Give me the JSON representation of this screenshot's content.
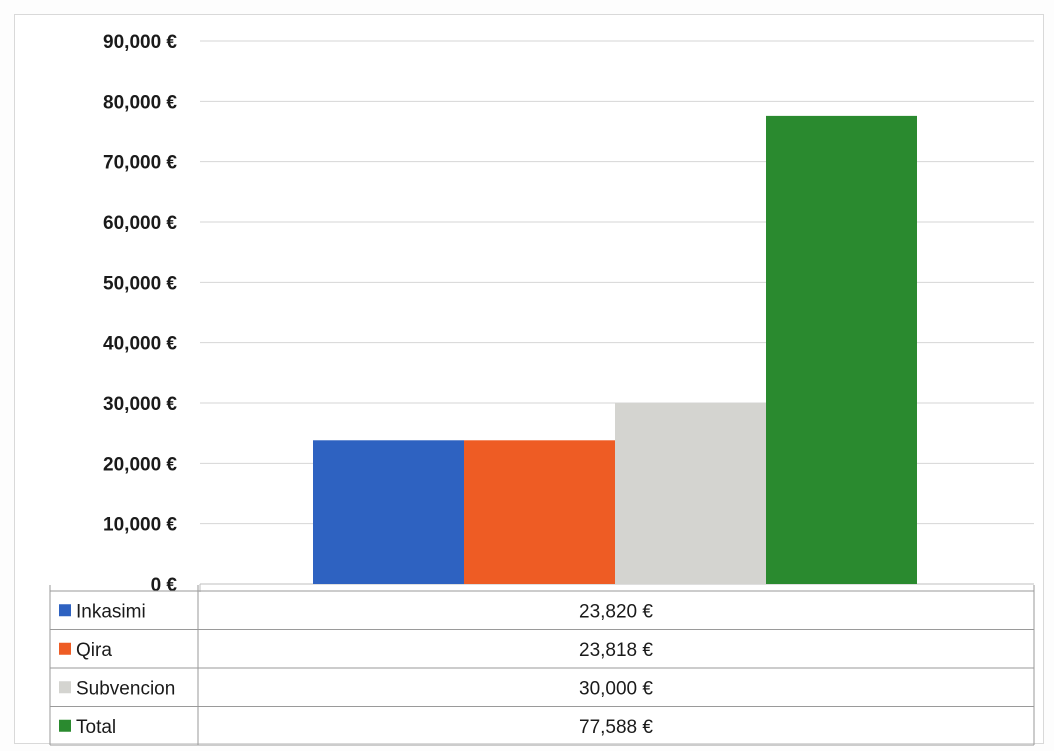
{
  "chart_data": {
    "type": "bar",
    "title": "",
    "xlabel": "",
    "ylabel": "",
    "ylim": [
      0,
      90000
    ],
    "yticks": [
      "0 €",
      "10,000 €",
      "20,000 €",
      "30,000 €",
      "40,000 €",
      "50,000 €",
      "60,000 €",
      "70,000 €",
      "80,000 €",
      "90,000 €"
    ],
    "grid": true,
    "legend": "data-table-below",
    "series": [
      {
        "name": "Inkasimi",
        "values": [
          23820
        ],
        "label": "23,820 €",
        "color": "#2e62c1"
      },
      {
        "name": "Qira",
        "values": [
          23818
        ],
        "label": "23,818 €",
        "color": "#ee5c24"
      },
      {
        "name": "Subvencion",
        "values": [
          30000
        ],
        "label": "30,000 €",
        "color": "#d4d4d0"
      },
      {
        "name": "Total",
        "values": [
          77588
        ],
        "label": "77,588 €",
        "color": "#2a8a2f"
      }
    ]
  }
}
